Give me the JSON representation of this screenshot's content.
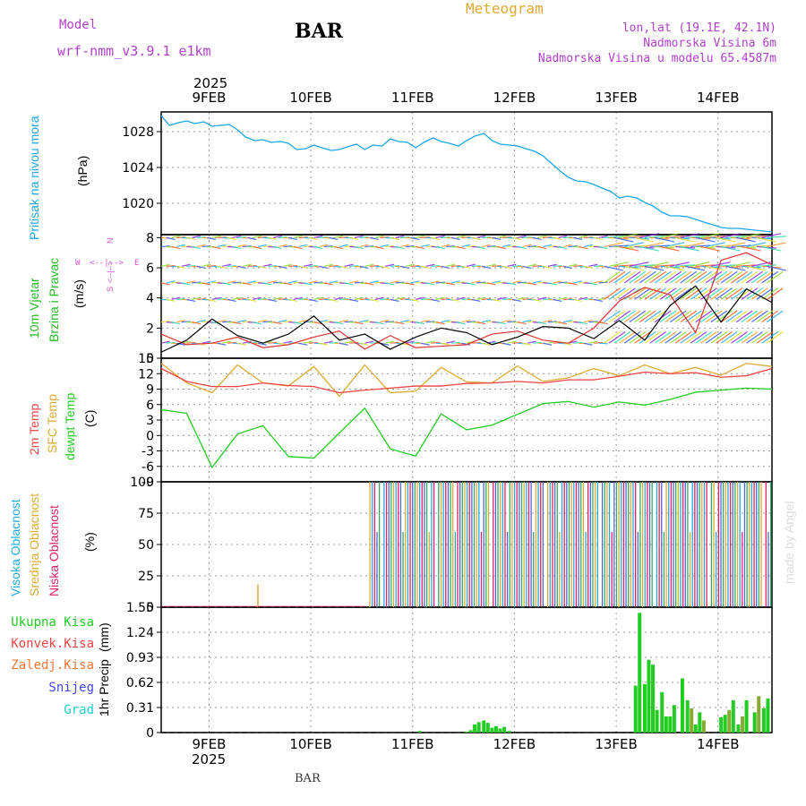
{
  "header": {
    "model_label": "Model",
    "model_name": "wrf-nmm_v3.9.1 e1km",
    "station": "BAR",
    "product": "Meteogram",
    "coords": "lon,lat (19.1E, 42.1N)",
    "elevation": "Nadmorska Visina 6m",
    "model_elevation": "Nadmorska Visina u modelu 65.4587m"
  },
  "footer": {
    "station": "BAR",
    "watermark": "made by Angel"
  },
  "colors": {
    "pressure": "#1aa6e8",
    "wind_label": "#22bb22",
    "wind_legend": "#cc55cc",
    "temp2m": "#ee4444",
    "sfc_temp": "#ddaa33",
    "dewpt": "#22cc22",
    "cloud_high": "#22aadd",
    "cloud_mid": "#ddaa33",
    "cloud_low": "#dd2266",
    "rain_total": "#22cc22",
    "rain_conv": "#ee4444",
    "rain_frz": "#ee7733",
    "snow": "#4444ee",
    "graupel": "#22cccc",
    "grid": "#999999"
  },
  "chart_data": [
    {
      "type": "line",
      "panel": "pressure",
      "ylabel_name": "Pritisak na nivou mora",
      "ylabel_unit": "(hPa)",
      "x_tick_labels": [
        "9FEB",
        "10FEB",
        "11FEB",
        "12FEB",
        "13FEB",
        "14FEB"
      ],
      "year_label": "2025",
      "x_days": [
        0,
        6
      ],
      "ylim": [
        1016.5,
        1030.2
      ],
      "yticks": [
        1020,
        1024,
        1028
      ],
      "series": [
        {
          "x": [
            0,
            0.08,
            0.17,
            0.25,
            0.33,
            0.42,
            0.5,
            0.58,
            0.67,
            0.75,
            0.83,
            0.92,
            1.0,
            1.08,
            1.17,
            1.25,
            1.33,
            1.42,
            1.5,
            1.58,
            1.67,
            1.75,
            1.83,
            1.92,
            2.0,
            2.08,
            2.17,
            2.25,
            2.33,
            2.42,
            2.5,
            2.58,
            2.67,
            2.75,
            2.83,
            2.92,
            3.0,
            3.08,
            3.17,
            3.25,
            3.33,
            3.42,
            3.5,
            3.58,
            3.67,
            3.75,
            3.83,
            3.92,
            4.0,
            4.08,
            4.17,
            4.25,
            4.33,
            4.42,
            4.5,
            4.58,
            4.67,
            4.75,
            4.83,
            4.92,
            5.0,
            5.08,
            5.17,
            5.25,
            5.33,
            5.42,
            5.5,
            5.58,
            5.67,
            5.75,
            5.83,
            5.92,
            6.0
          ],
          "values": [
            1029.8,
            1028.7,
            1029.0,
            1029.2,
            1028.9,
            1029.1,
            1028.6,
            1028.7,
            1028.8,
            1028.2,
            1027.4,
            1027.0,
            1027.1,
            1026.8,
            1026.9,
            1026.7,
            1026.0,
            1026.1,
            1026.5,
            1026.2,
            1025.9,
            1026.0,
            1026.3,
            1026.6,
            1026.0,
            1026.5,
            1026.4,
            1027.2,
            1026.9,
            1026.8,
            1026.2,
            1026.8,
            1027.3,
            1026.9,
            1026.7,
            1026.4,
            1027.0,
            1027.5,
            1027.8,
            1027.0,
            1026.6,
            1026.5,
            1026.4,
            1026.1,
            1025.8,
            1025.3,
            1024.5,
            1023.6,
            1022.9,
            1022.5,
            1022.4,
            1022.1,
            1021.7,
            1021.3,
            1020.6,
            1020.8,
            1020.6,
            1020.1,
            1019.7,
            1019.0,
            1018.6,
            1018.6,
            1018.5,
            1018.2,
            1017.9,
            1017.6,
            1017.3,
            1017.2,
            1017.2,
            1017.1,
            1017.0,
            1016.9,
            1016.8
          ]
        }
      ]
    },
    {
      "type": "line",
      "panel": "wind",
      "ylabel_name": "10m Vjetar",
      "ylabel_name2": "Brzina i Pravac",
      "ylabel_unit": "(m/s)",
      "legend": {
        "n": "N",
        "s": "S",
        "w": "W",
        "e": "E",
        "arrows": "<--|-->"
      },
      "ylim": [
        0,
        8.2
      ],
      "yticks": [
        0,
        2,
        4,
        6,
        8
      ],
      "series": [
        {
          "name": "speed",
          "x": [
            0,
            0.25,
            0.5,
            0.75,
            1.0,
            1.25,
            1.5,
            1.75,
            2.0,
            2.25,
            2.5,
            2.75,
            3.0,
            3.25,
            3.5,
            3.75,
            4.0,
            4.25,
            4.5,
            4.75,
            5.0,
            5.25,
            5.5,
            5.75,
            6.0
          ],
          "values": [
            0.4,
            1.2,
            2.6,
            1.5,
            1.0,
            1.6,
            2.8,
            1.2,
            1.6,
            0.6,
            1.4,
            2.0,
            1.7,
            0.9,
            1.4,
            2.1,
            2.0,
            1.3,
            2.5,
            1.2,
            3.5,
            4.8,
            2.4,
            4.6,
            3.7
          ]
        },
        {
          "name": "gust",
          "x": [
            0,
            0.25,
            0.5,
            0.75,
            1.0,
            1.25,
            1.5,
            1.75,
            2.0,
            2.25,
            2.5,
            2.75,
            3.0,
            3.25,
            3.5,
            3.75,
            4.0,
            4.25,
            4.5,
            4.75,
            5.0,
            5.25,
            5.5,
            5.75,
            6.0
          ],
          "values": [
            1.6,
            0.9,
            1.0,
            1.4,
            0.7,
            0.9,
            1.4,
            1.8,
            0.6,
            1.5,
            0.7,
            0.8,
            0.9,
            1.6,
            1.8,
            1.2,
            1.0,
            2.0,
            3.8,
            4.7,
            4.2,
            1.7,
            6.5,
            7.0,
            6.2
          ]
        }
      ]
    },
    {
      "type": "line",
      "panel": "temperature",
      "ylabel_name": "2m Temp",
      "ylabel_name2": "SFC Temp",
      "ylabel_name3": "dewpt Temp",
      "ylabel_unit": "(C)",
      "ylim": [
        -9,
        15
      ],
      "yticks": [
        -9,
        -6,
        -3,
        0,
        3,
        6,
        9,
        12,
        15
      ],
      "series": [
        {
          "name": "2m Temp",
          "x": [
            0,
            0.25,
            0.5,
            0.75,
            1.0,
            1.25,
            1.5,
            1.75,
            2.0,
            2.25,
            2.5,
            2.75,
            3.0,
            3.25,
            3.5,
            3.75,
            4.0,
            4.25,
            4.5,
            4.75,
            5.0,
            5.25,
            5.5,
            5.75,
            6.0
          ],
          "values": [
            13.0,
            10.5,
            9.5,
            9.5,
            10.2,
            9.7,
            9.5,
            8.3,
            8.8,
            9.2,
            9.6,
            9.6,
            10.1,
            10.2,
            10.5,
            10.2,
            10.8,
            10.8,
            11.5,
            12.3,
            12.0,
            12.2,
            11.3,
            11.6,
            13.0
          ]
        },
        {
          "name": "SFC Temp",
          "x": [
            0,
            0.25,
            0.5,
            0.75,
            1.0,
            1.25,
            1.5,
            1.75,
            2.0,
            2.25,
            2.5,
            2.75,
            3.0,
            3.25,
            3.5,
            3.75,
            4.0,
            4.25,
            4.5,
            4.75,
            5.0,
            5.25,
            5.5,
            5.75,
            6.0
          ],
          "values": [
            14.0,
            10.2,
            8.3,
            13.7,
            10.2,
            9.6,
            13.4,
            7.6,
            13.7,
            8.3,
            8.6,
            13.2,
            10.4,
            10.2,
            13.5,
            10.5,
            11.2,
            13.0,
            11.6,
            13.7,
            12.0,
            13.2,
            11.7,
            14.0,
            13.4
          ]
        },
        {
          "name": "dewpt Temp",
          "x": [
            0,
            0.25,
            0.5,
            0.75,
            1.0,
            1.25,
            1.5,
            1.75,
            2.0,
            2.25,
            2.5,
            2.75,
            3.0,
            3.25,
            3.5,
            3.75,
            4.0,
            4.25,
            4.5,
            4.75,
            5.0,
            5.25,
            5.5,
            5.75,
            6.0
          ],
          "values": [
            5.0,
            4.3,
            -6.2,
            0.3,
            1.9,
            -4.1,
            -4.4,
            0.5,
            5.3,
            -2.6,
            -4.0,
            4.2,
            1.1,
            2.0,
            4.1,
            6.2,
            6.6,
            5.5,
            6.5,
            5.9,
            7.0,
            8.4,
            8.8,
            9.2,
            9.0
          ]
        }
      ]
    },
    {
      "type": "bar",
      "panel": "clouds",
      "ylabel_name": "Visoka Oblacnost",
      "ylabel_name2": "Srednja Oblacnost",
      "ylabel_name3": "Niska Oblacnost",
      "ylabel_unit": "(%)",
      "ylim": [
        0,
        100
      ],
      "yticks": [
        0,
        25,
        50,
        75,
        100
      ],
      "note": "near 0% until about 10FEB 12h, ~100% most of the time after",
      "series": [
        {
          "name": "Visoka Oblacnost",
          "value_after_onset": 100
        },
        {
          "name": "Srednja Oblacnost",
          "value_after_onset": 100
        },
        {
          "name": "Niska Oblacnost",
          "value_after_onset": 100
        }
      ]
    },
    {
      "type": "bar",
      "panel": "precipitation",
      "ylabel_name": "1hr Precip",
      "ylabel_unit": "(mm)",
      "ylim": [
        0,
        1.55
      ],
      "yticks": [
        0,
        0.31,
        0.62,
        0.93,
        1.24,
        1.55
      ],
      "legend": [
        "Ukupna Kisa",
        "Konvek.Kisa",
        "Zaledj.Kisa",
        "Snijeg",
        "Grad"
      ],
      "series": [
        {
          "name": "Ukupna Kisa",
          "x": [
            2.54,
            3.0,
            3.04,
            3.08,
            3.12,
            3.17,
            3.21,
            3.25,
            3.29,
            3.33,
            3.37,
            3.42,
            4.66,
            4.7,
            4.75,
            4.79,
            4.83,
            4.87,
            4.92,
            4.96,
            5.0,
            5.04,
            5.12,
            5.17,
            5.21,
            5.25,
            5.29,
            5.33,
            5.5,
            5.54,
            5.58,
            5.62,
            5.67,
            5.71,
            5.75,
            5.83,
            5.87,
            5.92,
            5.96
          ],
          "values": [
            0.02,
            0.01,
            0.03,
            0.1,
            0.13,
            0.15,
            0.12,
            0.06,
            0.08,
            0.05,
            0.07,
            0.02,
            0.58,
            1.48,
            0.6,
            0.9,
            0.84,
            0.28,
            0.5,
            0.2,
            0.2,
            0.34,
            0.67,
            0.4,
            0.3,
            0.1,
            0.25,
            0.15,
            0.19,
            0.22,
            0.28,
            0.4,
            0.1,
            0.2,
            0.4,
            0.25,
            0.45,
            0.3,
            0.42
          ]
        }
      ]
    }
  ]
}
